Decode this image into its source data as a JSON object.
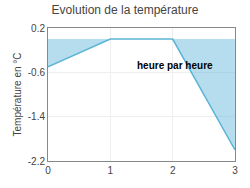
{
  "chart_data": {
    "type": "area",
    "title": "Evolution de la température",
    "y_label": "Température en °C",
    "annotation": "heure par heure",
    "x": [
      0,
      1,
      2,
      3
    ],
    "values": [
      -0.5,
      0.0,
      0.0,
      -2.0
    ],
    "color": "#5ab4d6",
    "xlim": [
      0,
      3
    ],
    "xticks": [
      0,
      1,
      2,
      3
    ],
    "ylim": [
      -2.2,
      0.2
    ],
    "yticks": [
      -2.2,
      -1.4,
      -0.6,
      0.2
    ],
    "grid": true
  }
}
